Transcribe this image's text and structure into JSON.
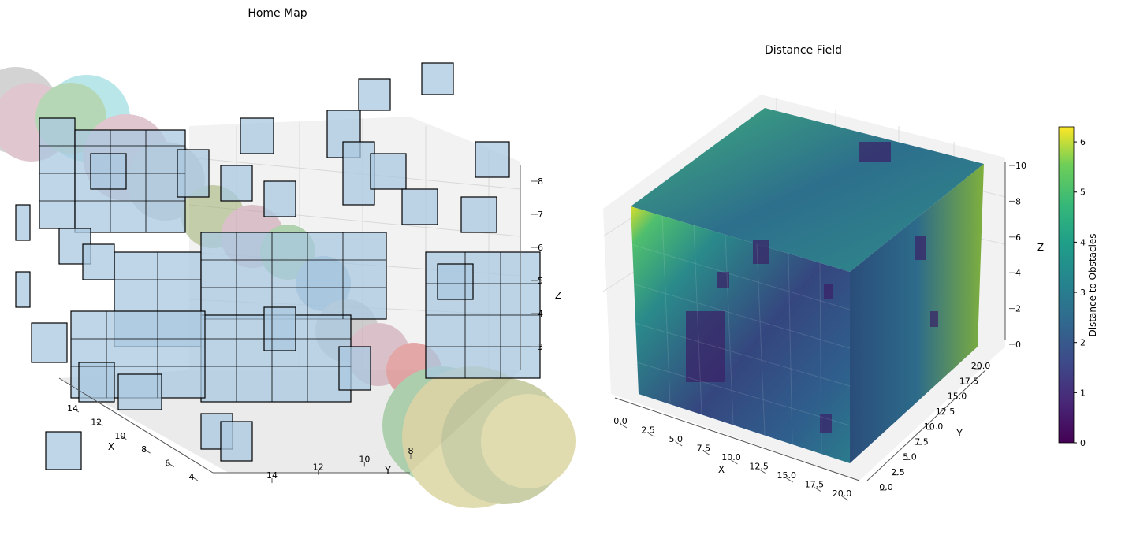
{
  "chart_data": [
    {
      "type": "3d-voxel",
      "title": "Home Map",
      "xlabel": "X",
      "ylabel": "Y",
      "zlabel": "Z",
      "x_ticks": [
        "14",
        "12",
        "10",
        "8",
        "6",
        "4"
      ],
      "y_ticks": [
        "14",
        "12",
        "10",
        "8"
      ],
      "z_ticks": [
        "8",
        "7",
        "6",
        "5",
        "4",
        "3"
      ],
      "grid": true
    },
    {
      "type": "3d-voxel",
      "title": "Distance Field",
      "xlabel": "X",
      "ylabel": "Y",
      "zlabel": "Z",
      "x_ticks": [
        "0.0",
        "2.5",
        "5.0",
        "7.5",
        "10.0",
        "12.5",
        "15.0",
        "17.5",
        "20.0"
      ],
      "y_ticks": [
        "0.0",
        "2.5",
        "5.0",
        "7.5",
        "10.0",
        "12.5",
        "15.0",
        "17.5",
        "20.0"
      ],
      "z_ticks": [
        "0",
        "2",
        "4",
        "6",
        "8",
        "10"
      ],
      "xlim": [
        0,
        20
      ],
      "ylim": [
        0,
        20
      ],
      "zlim": [
        0,
        10
      ],
      "colorbar": {
        "label": "Distance to Obstacles",
        "ticks": [
          "0",
          "1",
          "2",
          "3",
          "4",
          "5",
          "6"
        ],
        "range": [
          0,
          6.3
        ],
        "colormap": "viridis"
      },
      "grid": true
    }
  ]
}
